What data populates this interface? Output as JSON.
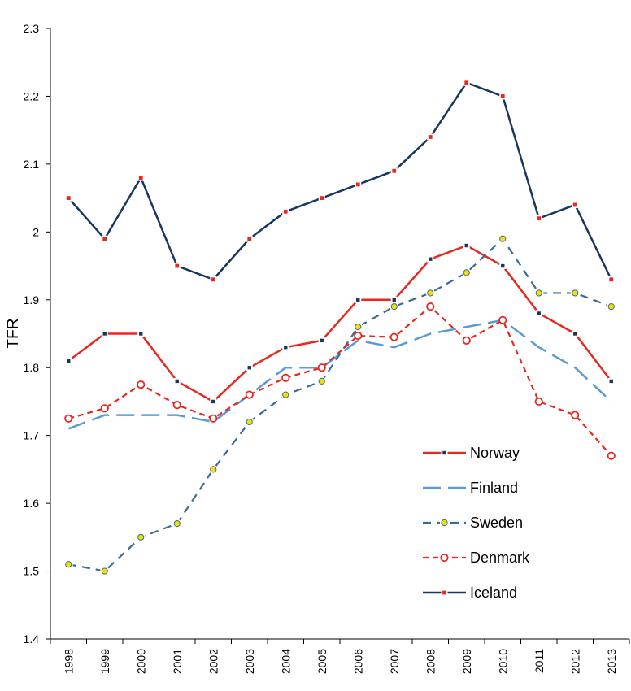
{
  "chart_data": {
    "type": "line",
    "title": "",
    "xlabel": "",
    "ylabel": "TFR",
    "ylim": [
      1.4,
      2.3
    ],
    "yticks": [
      "1.4",
      "1.5",
      "1.6",
      "1.7",
      "1.8",
      "1.9",
      "2",
      "2.1",
      "2.2",
      "2.3"
    ],
    "categories": [
      "1998",
      "1999",
      "2000",
      "2001",
      "2002",
      "2003",
      "2004",
      "2005",
      "2006",
      "2007",
      "2008",
      "2009",
      "2010",
      "2011",
      "2012",
      "2013"
    ],
    "legend_position": "bottom-right",
    "series": [
      {
        "name": "Norway",
        "color": "#e8281e",
        "dash": "solid",
        "marker": "square-dark",
        "values": [
          1.81,
          1.85,
          1.85,
          1.78,
          1.75,
          1.8,
          1.83,
          1.84,
          1.9,
          1.9,
          1.96,
          1.98,
          1.95,
          1.88,
          1.85,
          1.78
        ]
      },
      {
        "name": "Finland",
        "color": "#5b9bd5",
        "dash": "long-dash",
        "marker": "none",
        "values": [
          1.71,
          1.73,
          1.73,
          1.73,
          1.72,
          1.76,
          1.8,
          1.8,
          1.84,
          1.83,
          1.85,
          1.86,
          1.87,
          1.83,
          1.8,
          1.75
        ]
      },
      {
        "name": "Sweden",
        "color": "#3a6a96",
        "dash": "dash",
        "marker": "yellow-dot",
        "values": [
          1.51,
          1.5,
          1.55,
          1.57,
          1.65,
          1.72,
          1.76,
          1.78,
          1.86,
          1.89,
          1.91,
          1.94,
          1.99,
          1.91,
          1.91,
          1.89
        ]
      },
      {
        "name": "Denmark",
        "color": "#e8281e",
        "dash": "short-dash",
        "marker": "open-circle",
        "values": [
          1.725,
          1.74,
          1.775,
          1.745,
          1.725,
          1.76,
          1.785,
          1.8,
          1.847,
          1.845,
          1.89,
          1.84,
          1.87,
          1.75,
          1.73,
          1.67
        ]
      },
      {
        "name": "Iceland",
        "color": "#17375e",
        "dash": "solid",
        "marker": "square-red",
        "values": [
          2.05,
          1.99,
          2.08,
          1.95,
          1.93,
          1.99,
          2.03,
          2.05,
          2.07,
          2.09,
          2.14,
          2.22,
          2.2,
          2.02,
          2.04,
          1.93
        ]
      }
    ]
  }
}
